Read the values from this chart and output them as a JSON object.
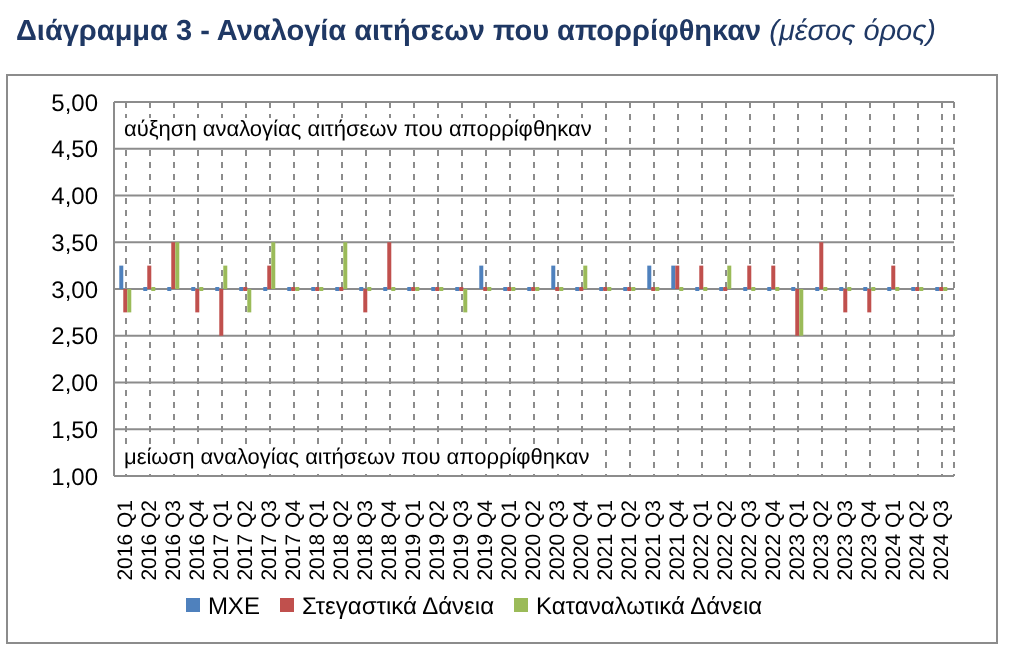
{
  "chart_data": {
    "type": "bar",
    "title": "Διάγραμμα 3 - Αναλογία αιτήσεων που απορρίφθηκαν",
    "subtitle": "(μέσος όρος)",
    "categories": [
      "2016 Q1",
      "2016 Q2",
      "2016 Q3",
      "2016 Q4",
      "2017 Q1",
      "2017 Q2",
      "2017 Q3",
      "2017 Q4",
      "2018 Q1",
      "2018 Q2",
      "2018 Q3",
      "2018 Q4",
      "2019 Q1",
      "2019 Q2",
      "2019 Q3",
      "2019 Q4",
      "2020 Q1",
      "2020 Q2",
      "2020 Q3",
      "2020 Q4",
      "2021 Q1",
      "2021 Q2",
      "2021 Q3",
      "2021 Q4",
      "2022 Q1",
      "2022 Q2",
      "2022 Q3",
      "2022 Q4",
      "2023 Q1",
      "2023 Q2",
      "2023 Q3",
      "2023 Q4",
      "2024 Q1",
      "2024 Q2",
      "2024 Q3"
    ],
    "series": [
      {
        "name": "ΜΧΕ",
        "color": "#4f81bd",
        "base": [
          3,
          3,
          3,
          3,
          3,
          3,
          3,
          3,
          3,
          3,
          3,
          3,
          3,
          3,
          3,
          3,
          3,
          3,
          3,
          3,
          3,
          3,
          3,
          3,
          3,
          3,
          3,
          3,
          3,
          3,
          3,
          3,
          3,
          3,
          3
        ],
        "values": [
          0.25,
          0,
          0,
          0,
          0,
          0,
          0,
          0,
          0,
          0,
          0,
          0,
          0,
          0,
          0,
          0.25,
          0,
          0,
          0.25,
          0,
          0,
          0,
          0.25,
          0.25,
          0,
          0,
          0,
          0,
          0,
          0,
          0,
          0,
          0,
          0,
          0
        ]
      },
      {
        "name": "Στεγαστικά Δάνεια",
        "color": "#c0504d",
        "base": [
          3,
          3,
          3,
          3,
          3,
          3,
          3,
          3,
          3,
          3,
          3,
          3,
          3,
          3,
          3,
          3,
          3,
          3,
          3,
          3,
          3,
          3,
          3,
          3,
          3,
          3,
          3,
          3,
          3,
          3,
          3,
          3,
          3,
          3,
          3
        ],
        "values": [
          -0.25,
          0.25,
          0.5,
          -0.25,
          -0.5,
          0,
          0.25,
          0,
          0,
          0,
          -0.25,
          0.5,
          0,
          0,
          0,
          0,
          0,
          0,
          0,
          0,
          0,
          0,
          0,
          0.25,
          0.25,
          0,
          0.25,
          0.25,
          -0.5,
          0.5,
          -0.25,
          -0.25,
          0.25,
          0,
          0
        ]
      },
      {
        "name": "Καταναλωτικά Δάνεια",
        "color": "#9bbb59",
        "base": [
          3,
          3,
          3,
          3,
          3,
          3,
          3,
          3,
          3,
          3,
          3,
          3,
          3,
          3,
          3,
          3,
          3,
          3,
          3,
          3,
          3,
          3,
          3,
          3,
          3,
          3,
          3,
          3,
          3,
          3,
          3,
          3,
          3,
          3,
          3
        ],
        "values": [
          -0.25,
          0,
          0.5,
          0,
          0.25,
          -0.25,
          0.5,
          0,
          0,
          0.5,
          0,
          0,
          0,
          0,
          -0.25,
          0,
          0,
          0,
          0,
          0.25,
          0,
          0,
          0,
          0,
          0,
          0.25,
          0,
          0,
          -0.5,
          0,
          0,
          0,
          0,
          0,
          0
        ]
      }
    ],
    "ylim": [
      1,
      5
    ],
    "yticks": [
      {
        "value": 1,
        "label": "1,00"
      },
      {
        "value": 1.5,
        "label": "1,50"
      },
      {
        "value": 2,
        "label": "2,00"
      },
      {
        "value": 2.5,
        "label": "2,50"
      },
      {
        "value": 3,
        "label": "3,00"
      },
      {
        "value": 3.5,
        "label": "3,50"
      },
      {
        "value": 4,
        "label": "4,00"
      },
      {
        "value": 4.5,
        "label": "4,50"
      },
      {
        "value": 5,
        "label": "5,00"
      }
    ],
    "annotations": [
      "αύξηση αναλογίας αιτήσεων που απορρίφθηκαν",
      "μείωση αναλογίας αιτήσεων που απορρίφθηκαν"
    ],
    "grid": true,
    "legend": "bottom"
  }
}
